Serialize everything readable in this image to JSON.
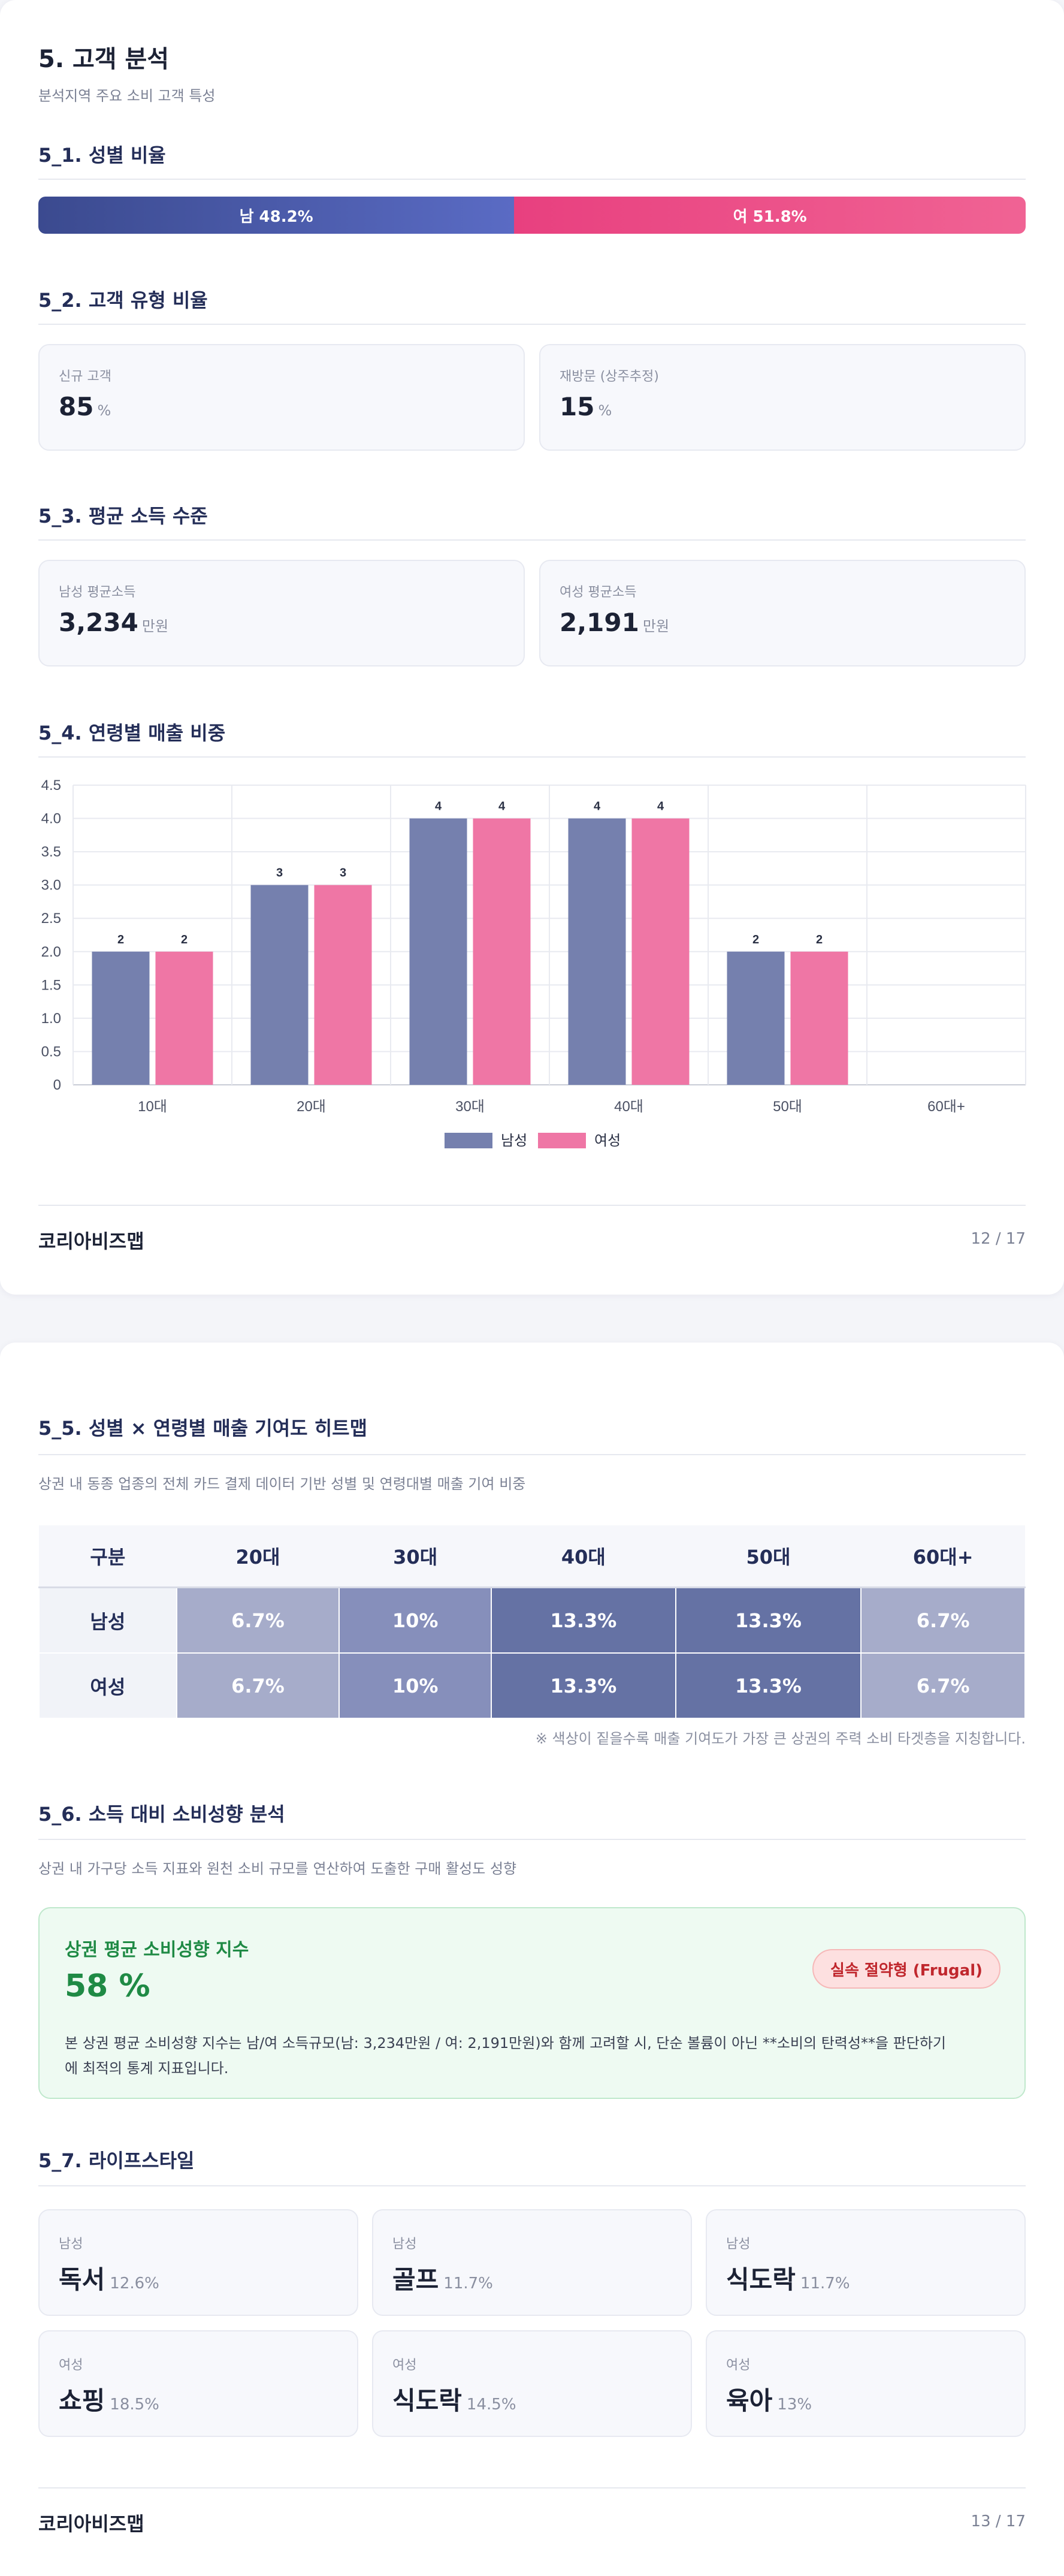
{
  "page1": {
    "title": "5. 고객 분석",
    "subtitle": "분석지역 주요 소비 고객 특성",
    "s1": {
      "title": "5_1. 성별 비율",
      "male_label": "남 48.2%",
      "female_label": "여 51.8%",
      "male_pct": 48.2,
      "female_pct": 51.8
    },
    "s2": {
      "title": "5_2. 고객 유형 비율",
      "cards": [
        {
          "label": "신규 고객",
          "value": "85",
          "unit": "%"
        },
        {
          "label": "재방문 (상주추정)",
          "value": "15",
          "unit": "%"
        }
      ]
    },
    "s3": {
      "title": "5_3. 평균 소득 수준",
      "cards": [
        {
          "label": "남성 평균소득",
          "value": "3,234",
          "unit": "만원"
        },
        {
          "label": "여성 평균소득",
          "value": "2,191",
          "unit": "만원"
        }
      ]
    },
    "s4": {
      "title": "5_4. 연령별 매출 비중"
    },
    "footer": {
      "brand": "코리아비즈맵",
      "page": "12 / 17"
    }
  },
  "chart_data": {
    "type": "bar",
    "categories": [
      "10대",
      "20대",
      "30대",
      "40대",
      "50대",
      "60대+"
    ],
    "series": [
      {
        "name": "남성",
        "values": [
          2,
          3,
          4,
          4,
          2,
          0
        ],
        "color": "#7580ae"
      },
      {
        "name": "여성",
        "values": [
          2,
          3,
          4,
          4,
          2,
          0
        ],
        "color": "#ef76a5"
      }
    ],
    "data_labels": [
      "2",
      "3",
      "4",
      "4",
      "2",
      ""
    ],
    "yticks": [
      "0",
      "0.5",
      "1.0",
      "1.5",
      "2.0",
      "2.5",
      "3.0",
      "3.5",
      "4.0",
      "4.5"
    ],
    "ylim": [
      0,
      4.5
    ],
    "grid": true,
    "legend": "bottom-center"
  },
  "page2": {
    "s5": {
      "title": "5_5. 성별 × 연령별 매출 기여도 히트맵",
      "desc": "상권 내 동종 업종의 전체 카드 결제 데이터 기반 성별 및 연령대별 매출 기여 비중",
      "headers": [
        "구분",
        "20대",
        "30대",
        "40대",
        "50대",
        "60대+"
      ],
      "rows": [
        {
          "label": "남성",
          "cells": [
            "6.7%",
            "10%",
            "13.3%",
            "13.3%",
            "6.7%"
          ]
        },
        {
          "label": "여성",
          "cells": [
            "6.7%",
            "10%",
            "13.3%",
            "13.3%",
            "6.7%"
          ]
        }
      ],
      "colors": [
        "#a6acca",
        "#868fbb",
        "#6572a4",
        "#6572a4",
        "#a6acca"
      ],
      "note": "※ 색상이 짙을수록 매출 기여도가 가장 큰 상권의 주력 소비 타겟층을 지칭합니다."
    },
    "s6": {
      "title": "5_6. 소득 대비 소비성향 분석",
      "desc": "상권 내 가구당 소득 지표와 원천 소비 규모를 연산하여 도출한 구매 활성도 성향",
      "box_title": "상권 평균 소비성향 지수",
      "value": "58 %",
      "badge": "실속 절약형 (Frugal)",
      "text_line1": "본 상권 평균 소비성향 지수는 남/여 소득규모(남: 3,234만원 / 여: 2,191만원)와 함께 고려할 시, 단순 볼륨이 아닌 **소비의 탄력성**을 판단하기",
      "text_line2": "에 최적의 통계 지표입니다."
    },
    "s7": {
      "title": "5_7. 라이프스타일",
      "cards": [
        {
          "label": "남성",
          "name": "독서",
          "pct": "12.6%"
        },
        {
          "label": "남성",
          "name": "골프",
          "pct": "11.7%"
        },
        {
          "label": "남성",
          "name": "식도락",
          "pct": "11.7%"
        },
        {
          "label": "여성",
          "name": "쇼핑",
          "pct": "18.5%"
        },
        {
          "label": "여성",
          "name": "식도락",
          "pct": "14.5%"
        },
        {
          "label": "여성",
          "name": "육아",
          "pct": "13%"
        }
      ]
    },
    "footer": {
      "brand": "코리아비즈맵",
      "page": "13 / 17"
    }
  }
}
